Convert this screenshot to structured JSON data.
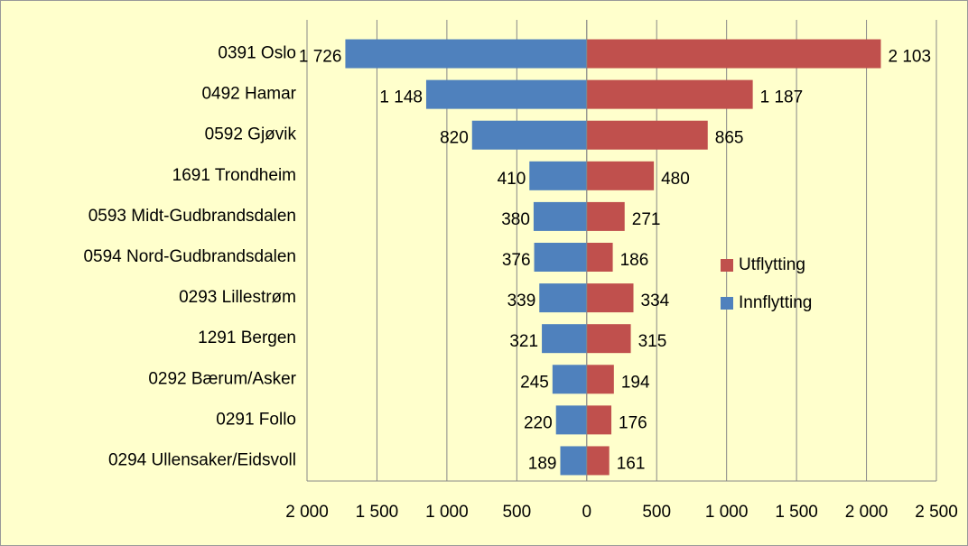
{
  "chart_data": {
    "type": "butterfly",
    "categories": [
      "0391 Oslo",
      "0492 Hamar",
      "0592 Gjøvik",
      "1691 Trondheim",
      "0593 Midt-Gudbrandsdalen",
      "0594 Nord-Gudbrandsdalen",
      "0293 Lillestrøm",
      "1291 Bergen",
      "0292 Bærum/Asker",
      "0291 Follo",
      "0294 Ullensaker/Eidsvoll"
    ],
    "series": [
      {
        "name": "Innflytting",
        "color": "#4f81bd",
        "values": [
          -1726,
          -1148,
          -820,
          -410,
          -380,
          -376,
          -339,
          -321,
          -245,
          -220,
          -189
        ],
        "value_labels": [
          "1 726",
          "1 148",
          "820",
          "410",
          "380",
          "376",
          "339",
          "321",
          "245",
          "220",
          "189"
        ]
      },
      {
        "name": "Utflytting",
        "color": "#c0504d",
        "values": [
          2103,
          1187,
          865,
          480,
          271,
          186,
          334,
          315,
          194,
          176,
          161
        ],
        "value_labels": [
          "2 103",
          "1 187",
          "865",
          "480",
          "271",
          "186",
          "334",
          "315",
          "194",
          "176",
          "161"
        ]
      }
    ],
    "xlim": [
      -2000,
      2500
    ],
    "xticks": [
      {
        "value": -2000,
        "label": "2 000"
      },
      {
        "value": -1500,
        "label": "1 500"
      },
      {
        "value": -1000,
        "label": "1 000"
      },
      {
        "value": -500,
        "label": "500"
      },
      0,
      500,
      {
        "value": 1000,
        "label": "1 000"
      },
      {
        "value": 1500,
        "label": "1 500"
      },
      {
        "value": 2000,
        "label": "2 000"
      },
      {
        "value": 2500,
        "label": "2 500"
      }
    ],
    "grid": true
  }
}
